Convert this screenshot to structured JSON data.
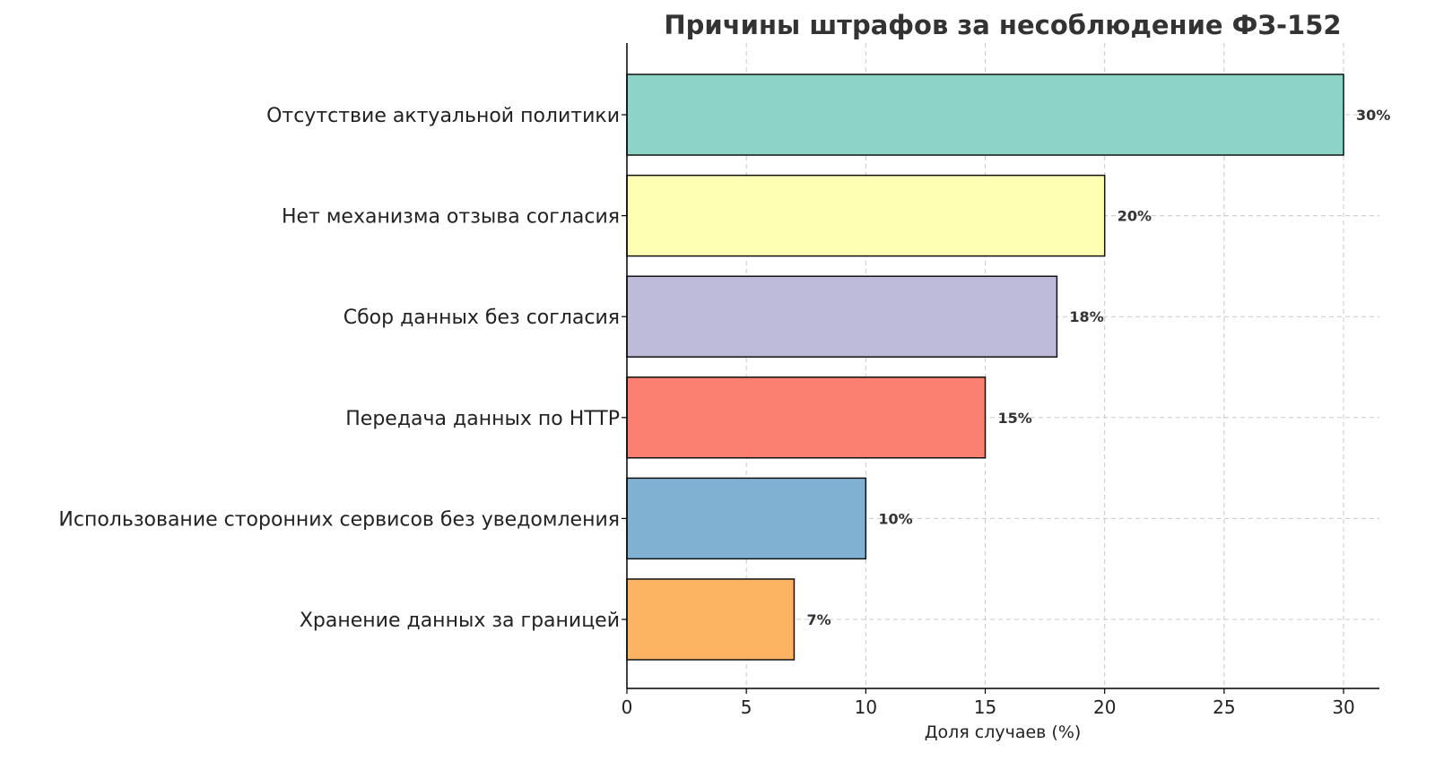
{
  "chart_data": {
    "type": "bar",
    "orientation": "horizontal",
    "title": "Причины штрафов за несоблюдение ФЗ-152",
    "xlabel": "Доля случаев (%)",
    "ylabel": "",
    "categories": [
      "Отсутствие актуальной политики",
      "Нет механизма отзыва согласия",
      "Сбор данных без согласия",
      "Передача данных по HTTP",
      "Использование сторонних сервисов без уведомления",
      "Хранение данных за границей"
    ],
    "values": [
      30,
      20,
      18,
      15,
      10,
      7
    ],
    "data_labels": [
      "30%",
      "20%",
      "18%",
      "15%",
      "10%",
      "7%"
    ],
    "colors": [
      "#8dd3c7",
      "#ffffb3",
      "#bebada",
      "#fb8072",
      "#80b1d3",
      "#fdb462"
    ],
    "xlim": [
      0,
      31.5
    ],
    "xticks": [
      0,
      5,
      10,
      15,
      20,
      25,
      30
    ],
    "xtick_labels": [
      "0",
      "5",
      "10",
      "15",
      "20",
      "25",
      "30"
    ],
    "grid": true,
    "grid_style": "dashed"
  }
}
